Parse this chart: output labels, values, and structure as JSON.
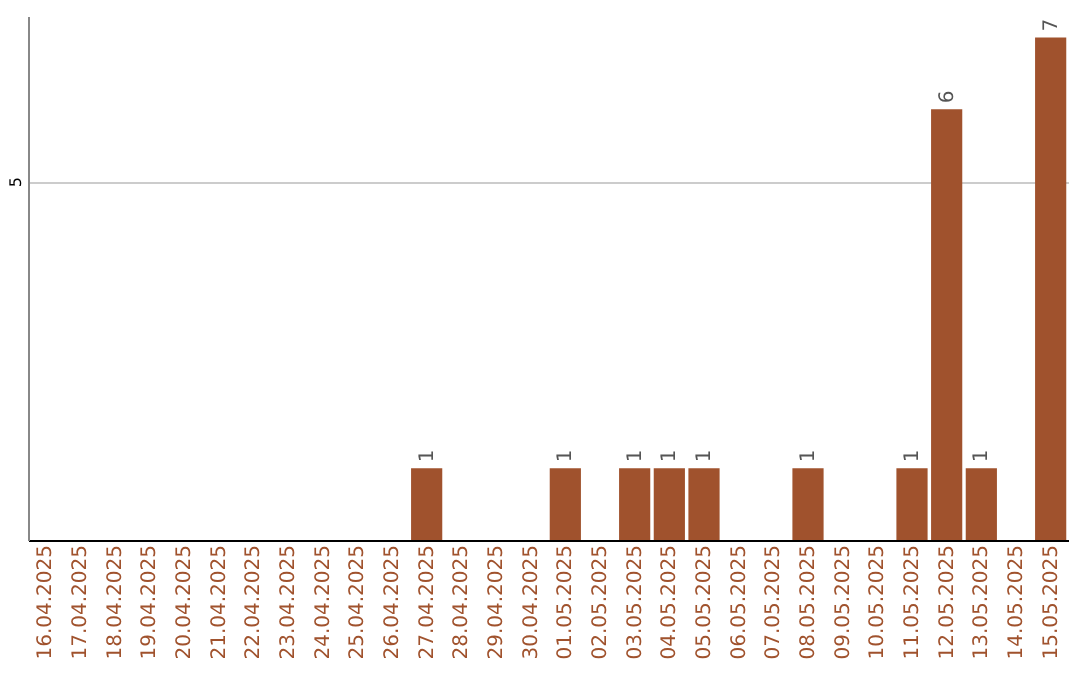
{
  "chart_data": {
    "type": "bar",
    "categories": [
      "16.04.2025",
      "17.04.2025",
      "18.04.2025",
      "19.04.2025",
      "20.04.2025",
      "21.04.2025",
      "22.04.2025",
      "23.04.2025",
      "24.04.2025",
      "25.04.2025",
      "26.04.2025",
      "27.04.2025",
      "28.04.2025",
      "29.04.2025",
      "30.04.2025",
      "01.05.2025",
      "02.05.2025",
      "03.05.2025",
      "04.05.2025",
      "05.05.2025",
      "06.05.2025",
      "07.05.2025",
      "08.05.2025",
      "09.05.2025",
      "10.05.2025",
      "11.05.2025",
      "12.05.2025",
      "13.05.2025",
      "14.05.2025",
      "15.05.2025"
    ],
    "values": [
      0,
      0,
      0,
      0,
      0,
      0,
      0,
      0,
      0,
      0,
      0,
      1,
      0,
      0,
      0,
      1,
      0,
      1,
      1,
      1,
      0,
      0,
      1,
      0,
      0,
      1,
      6,
      1,
      0,
      7
    ],
    "value_labels": [
      null,
      null,
      null,
      null,
      null,
      null,
      null,
      null,
      null,
      null,
      null,
      "1",
      null,
      null,
      null,
      "1",
      null,
      "1",
      "1",
      "1",
      null,
      null,
      "1",
      null,
      null,
      "1",
      "6",
      "1",
      null,
      "7"
    ],
    "color": "#a0522d",
    "ylim": [
      0,
      7.3
    ],
    "yticks": [
      5
    ],
    "grid": "y"
  }
}
